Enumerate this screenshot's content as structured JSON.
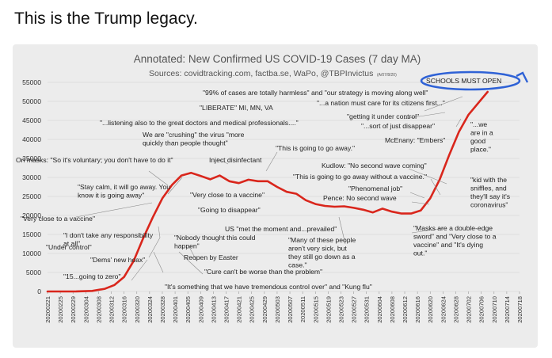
{
  "tweet": {
    "text": "This is the Trump legacy."
  },
  "chart_data": {
    "type": "line",
    "title": "Annotated: New Confirmed US COVID-19 Cases (7 day MA)",
    "subtitle": "Sources: covidtracking.com, factba.se, WaPo, @TBPInvictus",
    "subtitle_note": "(A/07/8/20)",
    "ylim": [
      0,
      55000
    ],
    "yticks": [
      0,
      5000,
      10000,
      15000,
      20000,
      25000,
      30000,
      35000,
      40000,
      45000,
      50000,
      55000
    ],
    "xticks": [
      "20200221",
      "20200225",
      "20200229",
      "20200304",
      "20200308",
      "20200312",
      "20200316",
      "20200320",
      "20200324",
      "20200328",
      "20200401",
      "20200405",
      "20200409",
      "20200413",
      "20200417",
      "20200421",
      "20200425",
      "20200429",
      "20200503",
      "20200507",
      "20200511",
      "20200515",
      "20200519",
      "20200523",
      "20200527",
      "20200531",
      "20200604",
      "20200608",
      "20200612",
      "20200616",
      "20200620",
      "20200624",
      "20200628",
      "20200702",
      "20200706",
      "20200710",
      "20200714",
      "20200718"
    ],
    "grid": true,
    "line_color": "#d9261c",
    "highlight_color": "#2f62d6",
    "series": [
      {
        "x": [
          "20200221",
          "20200301",
          "20200306",
          "20200310",
          "20200313",
          "20200316",
          "20200319",
          "20200322",
          "20200325",
          "20200328",
          "20200331",
          "20200403",
          "20200406",
          "20200409",
          "20200412",
          "20200415",
          "20200418",
          "20200421",
          "20200424",
          "20200427",
          "20200430",
          "20200503",
          "20200506",
          "20200509",
          "20200512",
          "20200515",
          "20200518",
          "20200521",
          "20200524",
          "20200527",
          "20200530",
          "20200602",
          "20200605",
          "20200608",
          "20200611",
          "20200614",
          "20200617",
          "20200620",
          "20200623",
          "20200626",
          "20200629",
          "20200702",
          "20200705",
          "20200708"
        ],
        "values": [
          0,
          20,
          150,
          700,
          1700,
          3800,
          8000,
          14000,
          19500,
          24500,
          28000,
          30500,
          31200,
          30400,
          29500,
          30500,
          29000,
          28500,
          29400,
          29000,
          29000,
          27500,
          26200,
          25700,
          24000,
          23000,
          22500,
          22300,
          22400,
          22000,
          21500,
          20800,
          21800,
          21000,
          20500,
          20500,
          21300,
          24500,
          29500,
          36000,
          42000,
          46500,
          49500,
          52500
        ]
      }
    ],
    "annotations": [
      {
        "text": "SCHOOLS MUST OPEN"
      },
      {
        "text": "\"99% of cases are totally harmless\" and \"our strategy is moving along well\""
      },
      {
        "text": "\"...a nation must care for its citizens first...\""
      },
      {
        "text": "\"LIBERATE\" MI, MN, VA"
      },
      {
        "text": "\"getting it under control\""
      },
      {
        "text": "\"...listening also to the great doctors and medical professionals....\""
      },
      {
        "text": "\"...sort of just disappear\""
      },
      {
        "text": "\"...we are in a good place.\""
      },
      {
        "text": "We are \"crushing\" the virus \"more quickly than people thought\""
      },
      {
        "text": "McEnany: \"Embers\""
      },
      {
        "text": "\"This is going to go away.\""
      },
      {
        "text": "On masks: \"So it's voluntary; you don't have to do it\""
      },
      {
        "text": "Inject disinfectant"
      },
      {
        "text": "Kudlow: \"No second wave coming\""
      },
      {
        "text": "\"This is going to go away without a vaccine.\""
      },
      {
        "text": "\"kid with the sniffles, and they'll say it's coronavirus\""
      },
      {
        "text": "\"Stay calm, it will go away. You know it is going away\""
      },
      {
        "text": "\"Very close to a vaccine\""
      },
      {
        "text": "\"Phenomenal job\""
      },
      {
        "text": "Pence: No second wave"
      },
      {
        "text": "\"Going to disappear\""
      },
      {
        "text": "\"Very close to a vaccine\""
      },
      {
        "text": "US \"met the moment and...prevailed\""
      },
      {
        "text": "\"Masks are a double-edge sword\" and \"Very close to a vaccine\" and \"It's dying out.\""
      },
      {
        "text": "\"I don't take any responsibility at all\""
      },
      {
        "text": "\"Nobody thought this could happen\""
      },
      {
        "text": "\"Many of these people aren't very sick, but they still go down as a case.\""
      },
      {
        "text": "\"Under control\""
      },
      {
        "text": "\"Dems' new hoax\""
      },
      {
        "text": "Reopen by Easter"
      },
      {
        "text": "\"Cure can't be worse than the problem\""
      },
      {
        "text": "\"15...going to zero\""
      },
      {
        "text": "\"It's something that we have tremendous control over\" and \"Kung flu\""
      }
    ]
  }
}
